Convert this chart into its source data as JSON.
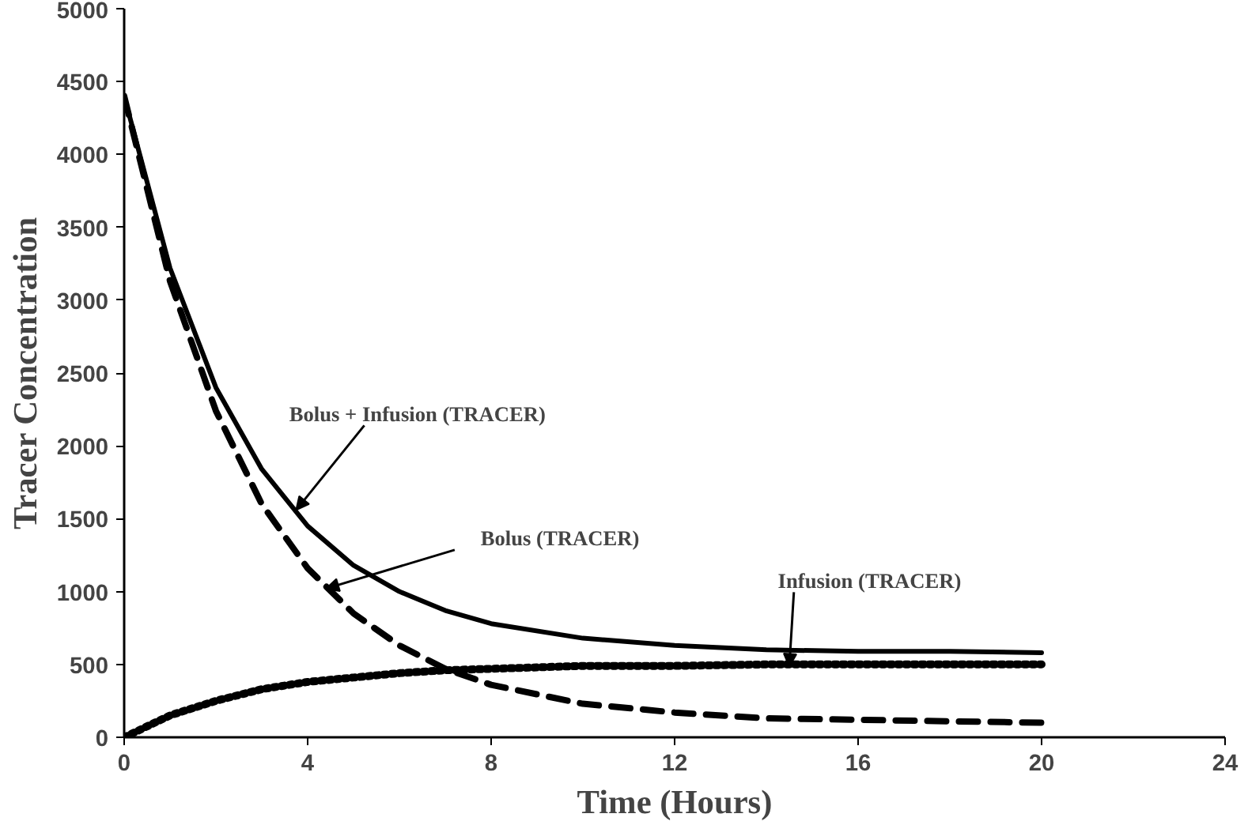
{
  "chart_data": {
    "type": "line",
    "xlabel": "Time (Hours)",
    "ylabel": "Tracer Concentration",
    "x": [
      0,
      1,
      2,
      3,
      4,
      5,
      6,
      7,
      8,
      10,
      12,
      14,
      16,
      18,
      20
    ],
    "series": [
      {
        "color": "#000000",
        "line_style": "solid",
        "values": [
          4400,
          3220,
          2400,
          1840,
          1450,
          1180,
          1000,
          870,
          780,
          680,
          630,
          600,
          590,
          590,
          580
        ]
      },
      {
        "color": "#000000",
        "line_style": "dashed",
        "values": [
          4400,
          3130,
          2240,
          1600,
          1160,
          850,
          630,
          470,
          360,
          230,
          170,
          130,
          120,
          110,
          100
        ]
      },
      {
        "color": "#000000",
        "line_style": "dotted",
        "values": [
          0,
          150,
          250,
          330,
          380,
          410,
          440,
          460,
          470,
          490,
          490,
          500,
          500,
          500,
          500
        ]
      }
    ],
    "xlim": [
      0,
      24
    ],
    "xticks": [
      0,
      4,
      8,
      12,
      16,
      20,
      24
    ],
    "ylim": [
      0,
      5000
    ],
    "yticks": [
      0,
      500,
      1000,
      1500,
      2000,
      2500,
      3000,
      3500,
      4000,
      4500,
      5000
    ],
    "grid": false,
    "annotations": [
      {
        "text": "Bolus  + Infusion (TRACER)",
        "x": 3.75,
        "y": 1560
      },
      {
        "text": "Bolus (TRACER)",
        "x": 4.4,
        "y": 1020
      },
      {
        "text": "Infusion (TRACER)",
        "x": 14.5,
        "y": 486
      }
    ]
  }
}
